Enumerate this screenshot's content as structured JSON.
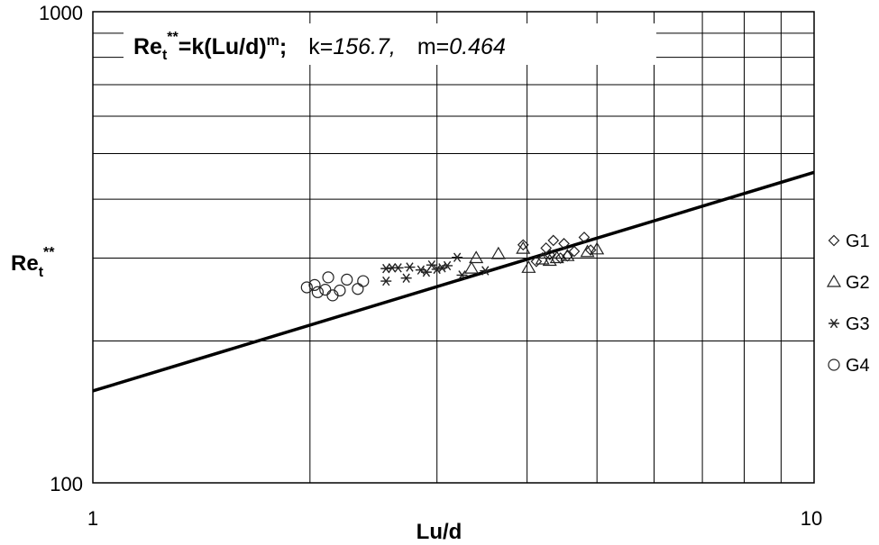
{
  "chart_data": {
    "type": "scatter",
    "x_scale": "log",
    "y_scale": "log",
    "xlim": [
      1,
      10
    ],
    "ylim": [
      100,
      1000
    ],
    "xlabel": "Lu/d",
    "ylabel": {
      "main": "Re",
      "sub": "t",
      "sup": "**"
    },
    "x_tick_labels": [
      "1",
      "10"
    ],
    "y_tick_labels": [
      "100",
      "1000"
    ],
    "grid": true,
    "legend_position": "right",
    "equation": {
      "lhs_main": "Re",
      "lhs_sub": "t",
      "lhs_sup": "**",
      "rhs": "=k(Lu/d)",
      "rhs_exp": "m",
      "sep": ";",
      "k_label": "k=",
      "k_value": "156.7,",
      "m_label": "m=",
      "m_value": "0.464"
    },
    "fit": {
      "k": 156.7,
      "m": 0.464,
      "x_range": [
        1,
        10
      ]
    },
    "series": [
      {
        "name": "G1",
        "marker": "diamond",
        "points": [
          [
            3.95,
            320
          ],
          [
            4.35,
            327
          ],
          [
            4.5,
            322
          ],
          [
            4.8,
            332
          ],
          [
            4.65,
            310
          ],
          [
            4.3,
            305
          ],
          [
            4.45,
            300
          ],
          [
            4.25,
            315
          ],
          [
            4.12,
            295
          ],
          [
            4.55,
            303
          ],
          [
            4.9,
            312
          ]
        ]
      },
      {
        "name": "G2",
        "marker": "triangle",
        "points": [
          [
            3.4,
            300
          ],
          [
            3.65,
            306
          ],
          [
            3.95,
            314
          ],
          [
            4.55,
            303
          ],
          [
            5.0,
            313
          ],
          [
            4.2,
            298
          ],
          [
            3.35,
            285
          ],
          [
            4.02,
            286
          ],
          [
            4.3,
            296
          ],
          [
            4.4,
            300
          ],
          [
            4.85,
            309
          ]
        ]
      },
      {
        "name": "G3",
        "marker": "asterisk",
        "points": [
          [
            2.55,
            285
          ],
          [
            2.6,
            286
          ],
          [
            2.75,
            287
          ],
          [
            2.95,
            290
          ],
          [
            3.1,
            289
          ],
          [
            2.85,
            283
          ],
          [
            3.25,
            276
          ],
          [
            3.5,
            282
          ],
          [
            3.2,
            301
          ],
          [
            2.55,
            268
          ],
          [
            2.72,
            272
          ],
          [
            2.9,
            280
          ],
          [
            3.0,
            284
          ],
          [
            3.05,
            286
          ],
          [
            2.65,
            286
          ]
        ]
      },
      {
        "name": "G4",
        "marker": "circle",
        "points": [
          [
            1.98,
            260
          ],
          [
            2.03,
            263
          ],
          [
            2.12,
            273
          ],
          [
            2.15,
            250
          ],
          [
            2.2,
            256
          ],
          [
            2.25,
            270
          ],
          [
            2.33,
            258
          ],
          [
            2.37,
            268
          ],
          [
            2.05,
            254
          ],
          [
            2.1,
            257
          ]
        ]
      }
    ]
  }
}
